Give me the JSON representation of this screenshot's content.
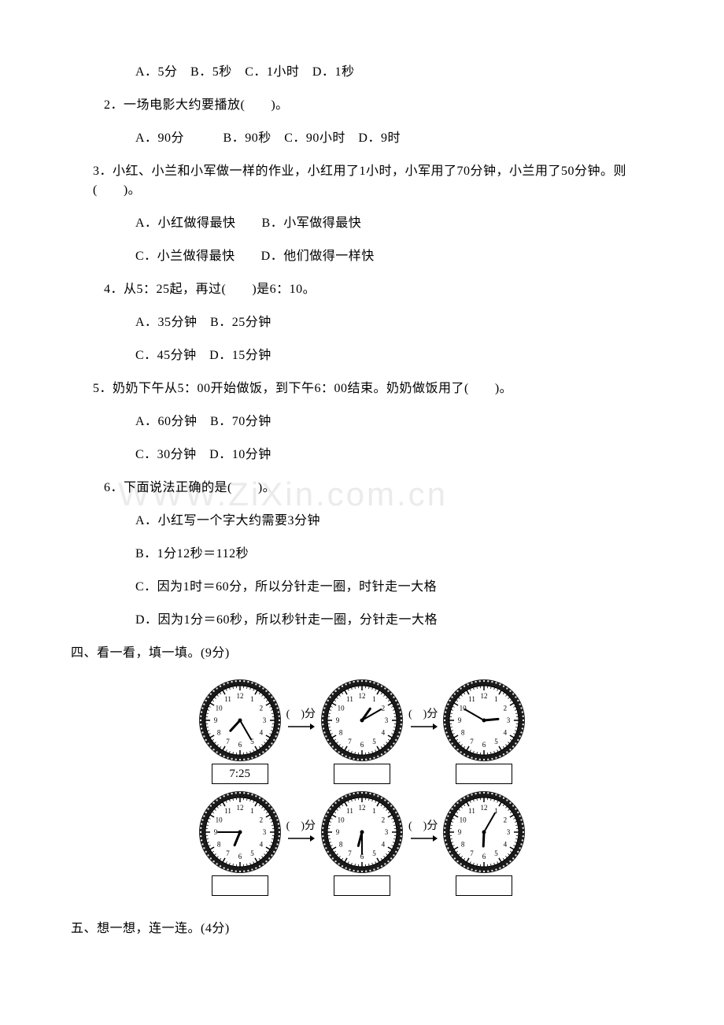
{
  "q1_options": "A．5分　B．5秒　C．1小时　D．1秒",
  "q2": "2．一场电影大约要播放(　　)。",
  "q2_options": "A．90分　　　B．90秒　C．90小时　D．9时",
  "q3": "3．小红、小兰和小军做一样的作业，小红用了1小时，小军用了70分钟，小兰用了50分钟。则(　　)。",
  "q3_optA": "A．小红做得最快　　B．小军做得最快",
  "q3_optC": "C．小兰做得最快　　D．他们做得一样快",
  "q4": "4．从5：25起，再过(　　)是6：10。",
  "q4_optA": "A．35分钟　B．25分钟",
  "q4_optC": "C．45分钟　D．15分钟",
  "q5": "5．奶奶下午从5：00开始做饭，到下午6：00结束。奶奶做饭用了(　　)。",
  "q5_optA": "A．60分钟　B．70分钟",
  "q5_optC": "C．30分钟　D．10分钟",
  "q6": "6．下面说法正确的是(　　)。",
  "q6_optA": "A．小红写一个字大约需要3分钟",
  "q6_optB": "B．1分12秒＝112秒",
  "q6_optC": "C．因为1时＝60分，所以分针走一圈，时针走一大格",
  "q6_optD": "D．因为1分＝60秒，所以秒针走一圈，分针走一大格",
  "section4": "四、看一看，填一填。(9分)",
  "section5": "五、想一想，连一连。(4分)",
  "arrow_label": "(　)分",
  "clock_label_1": "7:25",
  "watermark_text": "WWW.ZiXin.com.cn",
  "clocks": {
    "row1": [
      {
        "hour": 7,
        "minute": 25
      },
      {
        "hour": 1,
        "minute": 10
      },
      {
        "hour": 2,
        "minute": 50
      }
    ],
    "row2": [
      {
        "hour": 6,
        "minute": 45
      },
      {
        "hour": 6,
        "minute": 30
      },
      {
        "hour": 6,
        "minute": 5
      }
    ]
  },
  "style": {
    "text_color": "#000000",
    "background": "#ffffff",
    "watermark_color": "#ebebeb",
    "font_size_body": 16,
    "font_size_watermark": 42,
    "clock_face_fill": "#ffffff",
    "clock_rim_fill": "#1a1a1a",
    "clock_rim_dot": "#e8e8e8"
  }
}
